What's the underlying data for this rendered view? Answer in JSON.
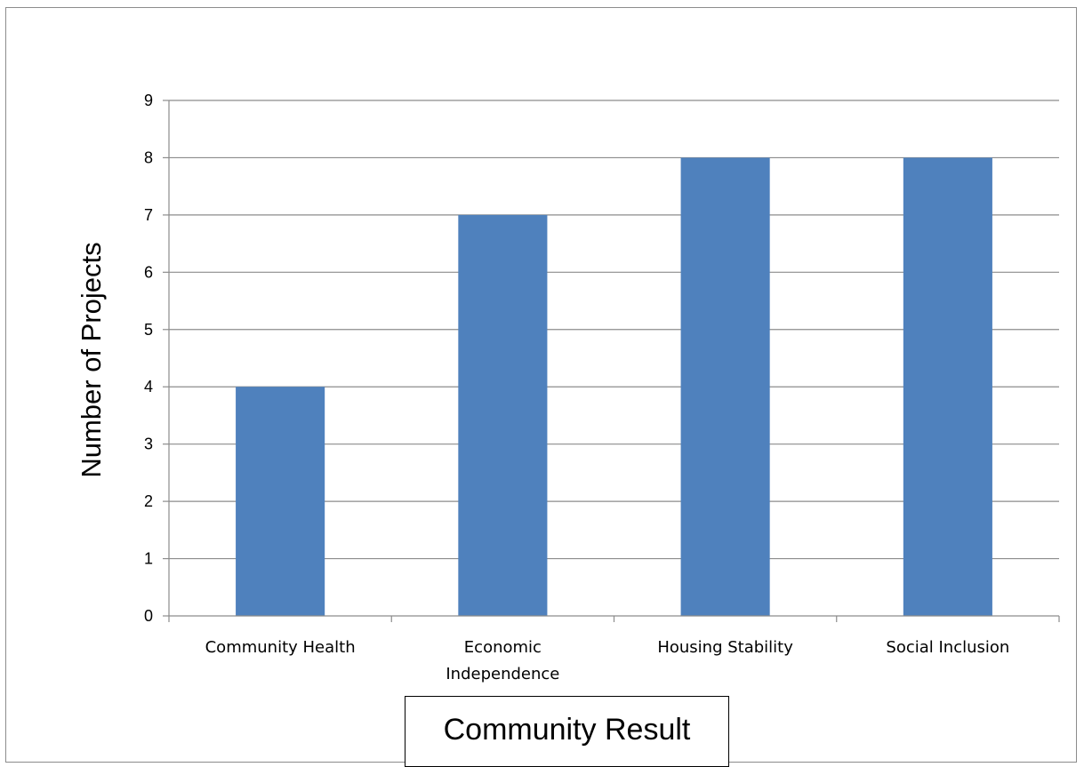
{
  "chart_data": {
    "type": "bar",
    "categories": [
      "Community Health",
      "Economic Independence",
      "Housing Stability",
      "Social Inclusion"
    ],
    "category_lines": [
      [
        "Community Health"
      ],
      [
        "Economic",
        "Independence"
      ],
      [
        "Housing Stability"
      ],
      [
        "Social Inclusion"
      ]
    ],
    "values": [
      4,
      7,
      8,
      8
    ],
    "xlabel": "Community Result",
    "ylabel": "Number of Projects",
    "ylim": [
      0,
      9
    ],
    "yticks": [
      0,
      1,
      2,
      3,
      4,
      5,
      6,
      7,
      8,
      9
    ],
    "grid": true,
    "colors": {
      "bar": "#4f81bd",
      "grid": "#8c8c8c",
      "axis": "#8c8c8c"
    }
  }
}
